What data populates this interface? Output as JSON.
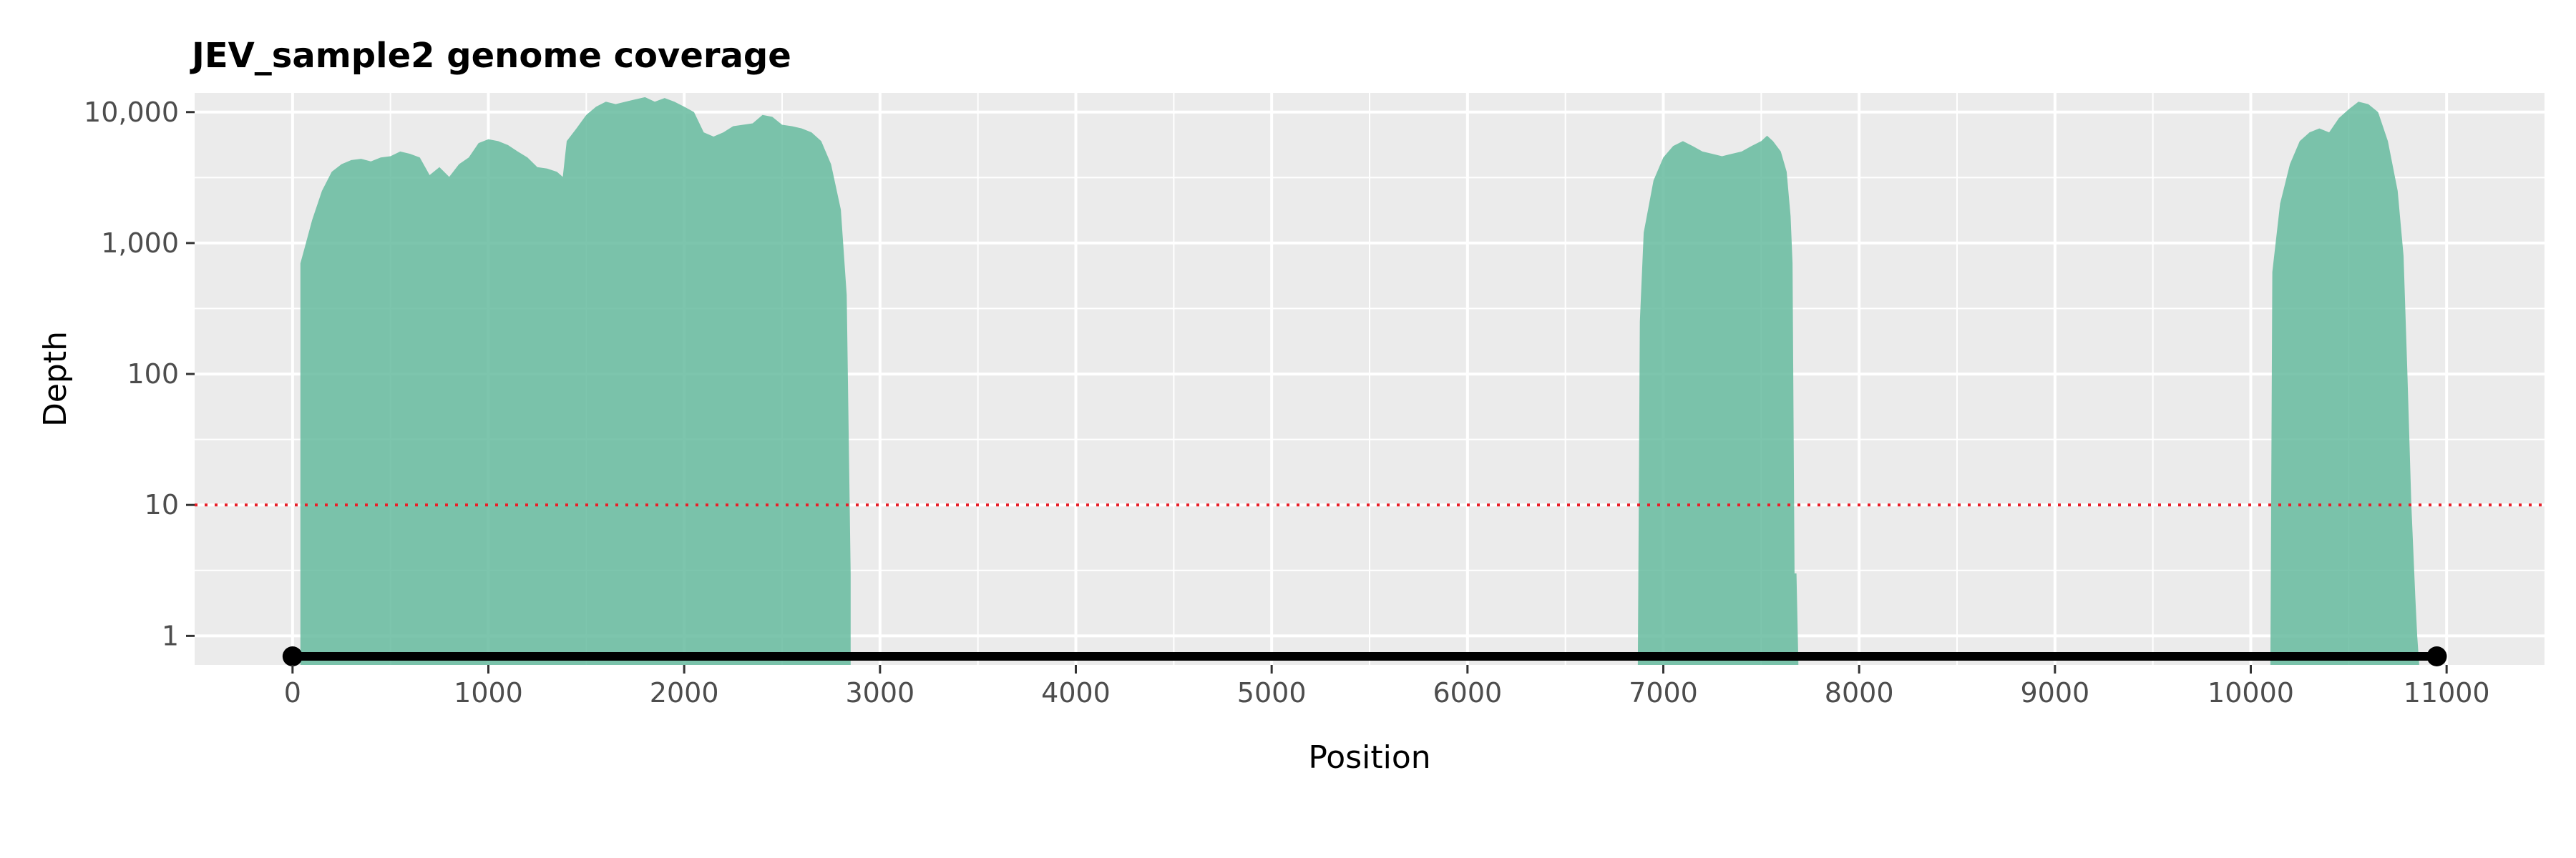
{
  "chart_data": {
    "type": "area",
    "title": "JEV_sample2 genome coverage",
    "xlabel": "Position",
    "ylabel": "Depth",
    "xlim": [
      -500,
      11500
    ],
    "ylim": [
      0.6,
      14000
    ],
    "y_scale": "log",
    "grid": true,
    "x_ticks": [
      0,
      1000,
      2000,
      3000,
      4000,
      5000,
      6000,
      7000,
      8000,
      9000,
      10000,
      11000
    ],
    "x_tick_labels": [
      "0",
      "1000",
      "2000",
      "3000",
      "4000",
      "5000",
      "6000",
      "7000",
      "8000",
      "9000",
      "10000",
      "11000"
    ],
    "y_ticks": [
      1,
      10,
      100,
      1000,
      10000
    ],
    "y_tick_labels": [
      "1",
      "10",
      "100",
      "1,000",
      "10,000"
    ],
    "threshold": {
      "value": 10,
      "color": "#e8202a",
      "style": "dotted"
    },
    "fill_color": "#66bb9f",
    "genome_line": {
      "start": 0,
      "end": 10950,
      "color": "#000000"
    },
    "series": [
      {
        "x": [
          40,
          60,
          100,
          150,
          200,
          250,
          300,
          350,
          400,
          450,
          500,
          550,
          600,
          650,
          700,
          750,
          800,
          850,
          900,
          950,
          1000,
          1050,
          1100,
          1150,
          1200,
          1250,
          1300,
          1350,
          1380,
          1400,
          1450,
          1500,
          1550,
          1600,
          1650,
          1700,
          1750,
          1800,
          1850,
          1900,
          1950,
          2000,
          2050,
          2100,
          2150,
          2200,
          2250,
          2300,
          2350,
          2400,
          2450,
          2500,
          2550,
          2600,
          2650,
          2700,
          2750,
          2800,
          2830,
          2850,
          2850
        ],
        "y": [
          700,
          900,
          1500,
          2500,
          3500,
          4000,
          4300,
          4400,
          4200,
          4500,
          4600,
          5000,
          4800,
          4500,
          3300,
          3800,
          3200,
          4000,
          4500,
          5800,
          6200,
          6000,
          5600,
          5000,
          4500,
          3800,
          3700,
          3500,
          3200,
          6000,
          7500,
          9500,
          11000,
          12000,
          11500,
          12000,
          12500,
          13000,
          12000,
          12800,
          12000,
          11000,
          10000,
          7000,
          6500,
          7000,
          7800,
          8000,
          8200,
          9500,
          9200,
          8000,
          7800,
          7500,
          7000,
          6000,
          4000,
          1800,
          400,
          3,
          0.6
        ]
      },
      {
        "x": [
          6870,
          6880,
          6900,
          6950,
          7000,
          7050,
          7100,
          7150,
          7200,
          7250,
          7300,
          7350,
          7400,
          7450,
          7500,
          7530,
          7560,
          7600,
          7630,
          7650,
          7660,
          7670,
          7680,
          7690,
          7700
        ],
        "y": [
          0.6,
          250,
          1200,
          3000,
          4500,
          5500,
          6000,
          5500,
          5000,
          4800,
          4600,
          4800,
          5000,
          5500,
          6000,
          6600,
          6000,
          5000,
          3500,
          1600,
          700,
          3,
          3,
          0.6,
          0.6
        ]
      },
      {
        "x": [
          10100,
          10110,
          10150,
          10200,
          10250,
          10300,
          10350,
          10400,
          10450,
          10500,
          10550,
          10600,
          10650,
          10700,
          10750,
          10780,
          10800,
          10820,
          10840,
          10850,
          10860
        ],
        "y": [
          0.6,
          600,
          2000,
          4000,
          6000,
          7000,
          7500,
          7000,
          9000,
          10500,
          12000,
          11500,
          10000,
          6000,
          2500,
          800,
          100,
          10,
          2,
          1,
          0.6
        ]
      }
    ]
  }
}
